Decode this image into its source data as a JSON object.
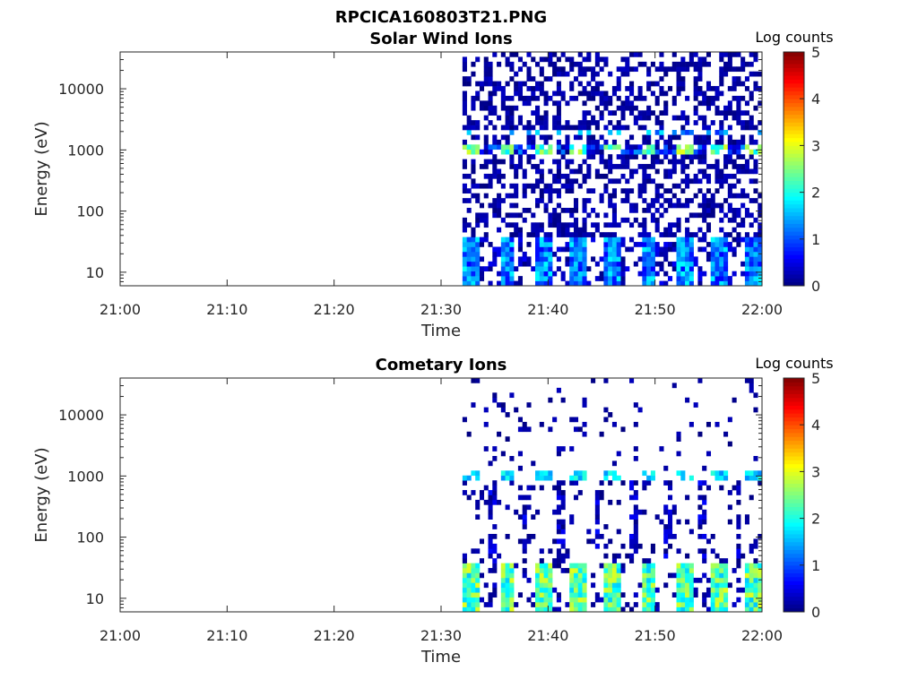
{
  "figure": {
    "title": "RPCICA160803T21.PNG"
  },
  "colormap": {
    "name": "jet",
    "stops": [
      "#00007f",
      "#0000ff",
      "#007fff",
      "#00ffff",
      "#7fff7f",
      "#ffff00",
      "#ff7f00",
      "#ff0000",
      "#7f0000"
    ]
  },
  "chart_data": [
    {
      "type": "heatmap",
      "title": "Solar Wind Ions",
      "xlabel": "Time",
      "ylabel": "Energy (eV)",
      "y_scale": "log",
      "xlim": [
        "21:00",
        "22:00"
      ],
      "ylim": [
        6,
        40000
      ],
      "x_ticks": [
        "21:00",
        "21:10",
        "21:20",
        "21:30",
        "21:40",
        "21:50",
        "22:00"
      ],
      "y_ticks": [
        "10",
        "100",
        "1000",
        "10000"
      ],
      "colorbar": {
        "label": "Log counts",
        "range": [
          0,
          5
        ],
        "ticks": [
          "0",
          "1",
          "2",
          "3",
          "4",
          "5"
        ]
      },
      "data_start": "21:32",
      "data_end": "22:00",
      "features": [
        {
          "energy_eV": [
            8,
            35
          ],
          "level": 1.5,
          "description": "low-energy periodic bursts"
        },
        {
          "energy_eV": [
            900,
            1100
          ],
          "level": 2.5,
          "description": "solar wind proton band"
        },
        {
          "energy_eV": [
            1800,
            2200
          ],
          "level": 1.5
        },
        {
          "energy_eV": [
            40,
            40000
          ],
          "level": 0.3,
          "description": "sparse background counts"
        }
      ]
    },
    {
      "type": "heatmap",
      "title": "Cometary Ions",
      "xlabel": "Time",
      "ylabel": "Energy (eV)",
      "y_scale": "log",
      "xlim": [
        "21:00",
        "22:00"
      ],
      "ylim": [
        6,
        40000
      ],
      "x_ticks": [
        "21:00",
        "21:10",
        "21:20",
        "21:30",
        "21:40",
        "21:50",
        "22:00"
      ],
      "y_ticks": [
        "10",
        "100",
        "1000",
        "10000"
      ],
      "colorbar": {
        "label": "Log counts",
        "range": [
          0,
          5
        ],
        "ticks": [
          "0",
          "1",
          "2",
          "3",
          "4",
          "5"
        ]
      },
      "data_start": "21:32",
      "data_end": "22:00",
      "features": [
        {
          "energy_eV": [
            8,
            35
          ],
          "level": 2.4,
          "description": "periodic low-energy bursts"
        },
        {
          "energy_eV": [
            900,
            1100
          ],
          "level": 1.7
        },
        {
          "energy_eV": [
            40,
            800
          ],
          "level": 0.4,
          "description": "vertical streaks"
        },
        {
          "energy_eV": [
            2000,
            25000
          ],
          "level": 0.2,
          "description": "sparse high-energy counts"
        }
      ]
    }
  ]
}
